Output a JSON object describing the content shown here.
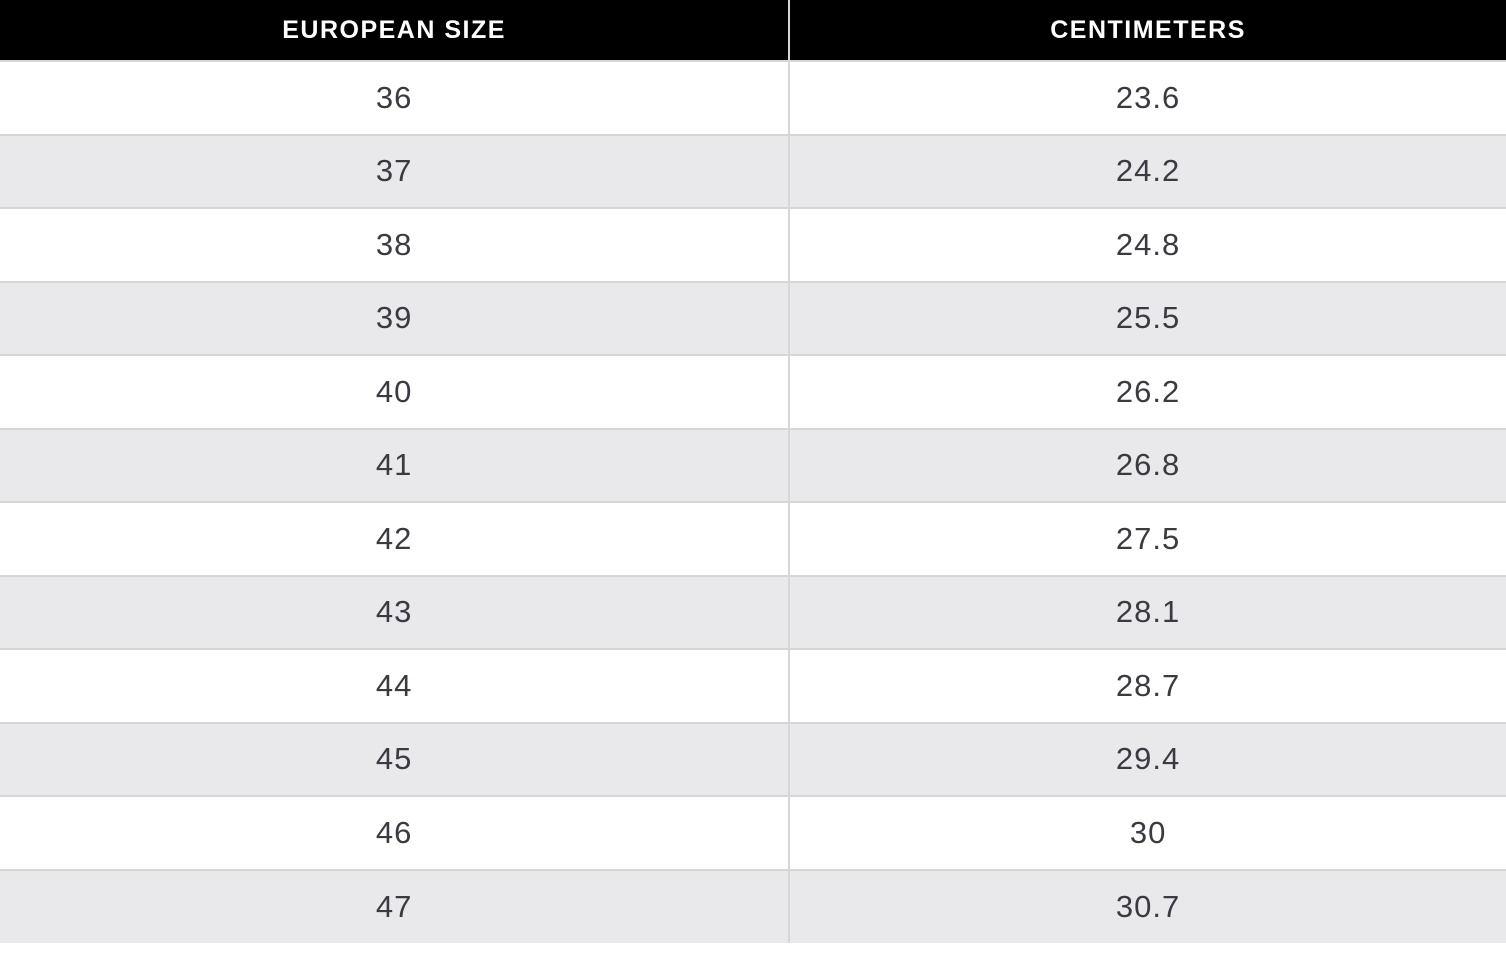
{
  "chart_data": {
    "type": "table",
    "columns": [
      "EUROPEAN SIZE",
      "CENTIMETERS"
    ],
    "rows": [
      [
        "36",
        "23.6"
      ],
      [
        "37",
        "24.2"
      ],
      [
        "38",
        "24.8"
      ],
      [
        "39",
        "25.5"
      ],
      [
        "40",
        "26.2"
      ],
      [
        "41",
        "26.8"
      ],
      [
        "42",
        "27.5"
      ],
      [
        "43",
        "28.1"
      ],
      [
        "44",
        "28.7"
      ],
      [
        "45",
        "29.4"
      ],
      [
        "46",
        "30"
      ],
      [
        "47",
        "30.7"
      ]
    ]
  },
  "colors": {
    "header_bg": "#000000",
    "header_text": "#ffffff",
    "row_bg": "#ffffff",
    "row_alt_bg": "#e9e9eb",
    "border": "#d6d6d8",
    "cell_text": "#3a3a43"
  }
}
